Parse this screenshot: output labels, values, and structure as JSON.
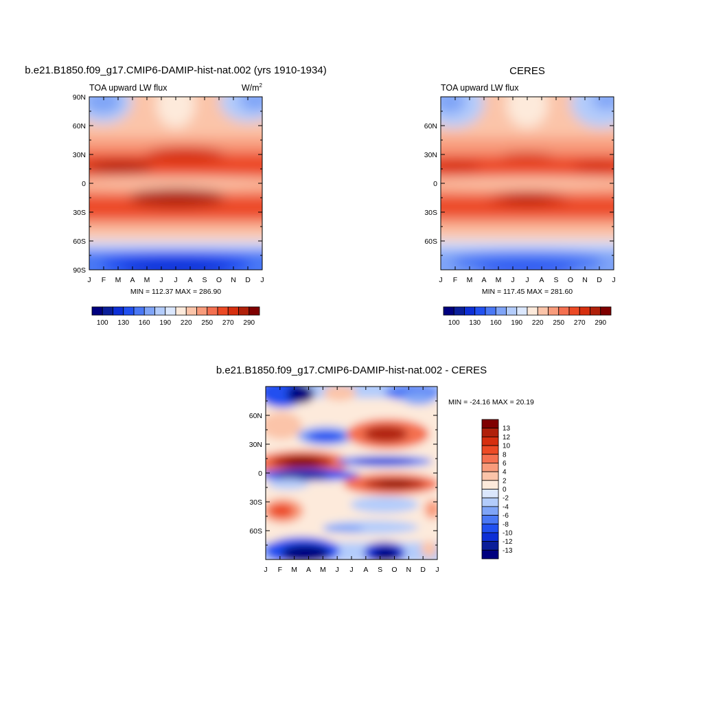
{
  "chart_data": [
    {
      "type": "heatmap",
      "title": "b.e21.B1850.f09_g17.CMIP6-DAMIP-hist-nat.002 (yrs 1910-1934)",
      "subtitle": "TOA upward LW flux",
      "units": "W/m",
      "units_superscript": "2",
      "stats": "MIN = 112.37 MAX = 286.90",
      "xticks": [
        "J",
        "F",
        "M",
        "A",
        "M",
        "J",
        "J",
        "A",
        "S",
        "O",
        "N",
        "D",
        "J"
      ],
      "yticks": [
        "90N",
        "60N",
        "30N",
        "0",
        "30S",
        "60S",
        "90S"
      ],
      "ytick_values": [
        90,
        60,
        30,
        0,
        -30,
        -60,
        -90
      ],
      "ylim": [
        -90,
        90
      ],
      "colorbar": {
        "labels": [
          "100",
          "130",
          "160",
          "190",
          "220",
          "250",
          "270",
          "290"
        ],
        "colors": [
          "#00007f",
          "#0a1e99",
          "#0d2fd6",
          "#2150f0",
          "#4a78f5",
          "#7fa4f7",
          "#b3ccfb",
          "#dbe7fd",
          "#fdeadb",
          "#fbc4a9",
          "#f89b7b",
          "#f47050",
          "#ec4a25",
          "#d62f0f",
          "#b0200a",
          "#7f0000"
        ]
      },
      "annotation": "zonal-mean seasonal cycle: warm (~280-290) subtropical bands near 18N and 18S, minimum (~110-130) over Antarctica in Jun-Sep"
    },
    {
      "type": "heatmap",
      "title": "CERES",
      "subtitle": "TOA upward LW flux",
      "stats": "MIN = 117.45 MAX = 281.60",
      "xticks": [
        "J",
        "F",
        "M",
        "A",
        "M",
        "J",
        "J",
        "A",
        "S",
        "O",
        "N",
        "D",
        "J"
      ],
      "yticks": [
        "60N",
        "30N",
        "0",
        "30S",
        "60S"
      ],
      "ytick_values": [
        60,
        30,
        0,
        -30,
        -60
      ],
      "ylim": [
        -90,
        90
      ],
      "colorbar": {
        "labels": [
          "100",
          "130",
          "160",
          "190",
          "220",
          "250",
          "270",
          "290"
        ],
        "colors": [
          "#00007f",
          "#0a1e99",
          "#0d2fd6",
          "#2150f0",
          "#4a78f5",
          "#7fa4f7",
          "#b3ccfb",
          "#dbe7fd",
          "#fdeadb",
          "#fbc4a9",
          "#f89b7b",
          "#f47050",
          "#ec4a25",
          "#d62f0f",
          "#b0200a",
          "#7f0000"
        ]
      }
    },
    {
      "type": "heatmap",
      "title": "b.e21.B1850.f09_g17.CMIP6-DAMIP-hist-nat.002 - CERES",
      "stats": "MIN = -24.16 MAX =  20.19",
      "xticks": [
        "J",
        "F",
        "M",
        "A",
        "M",
        "J",
        "J",
        "A",
        "S",
        "O",
        "N",
        "D",
        "J"
      ],
      "yticks": [
        "60N",
        "30N",
        "0",
        "30S",
        "60S"
      ],
      "ytick_values": [
        60,
        30,
        0,
        -30,
        -60
      ],
      "ylim": [
        -90,
        90
      ],
      "colorbar": {
        "labels": [
          "13",
          "12",
          "10",
          "8",
          "6",
          "4",
          "2",
          "0",
          "-2",
          "-4",
          "-6",
          "-8",
          "-10",
          "-12",
          "-13"
        ],
        "colors": [
          "#7f0000",
          "#b0200a",
          "#d62f0f",
          "#ec4a25",
          "#f47050",
          "#f89b7b",
          "#fbc4a9",
          "#fdeadb",
          "#dbe7fd",
          "#b3ccfb",
          "#7fa4f7",
          "#4a78f5",
          "#2150f0",
          "#0d2fd6",
          "#0a1e99",
          "#00007f"
        ]
      }
    }
  ]
}
